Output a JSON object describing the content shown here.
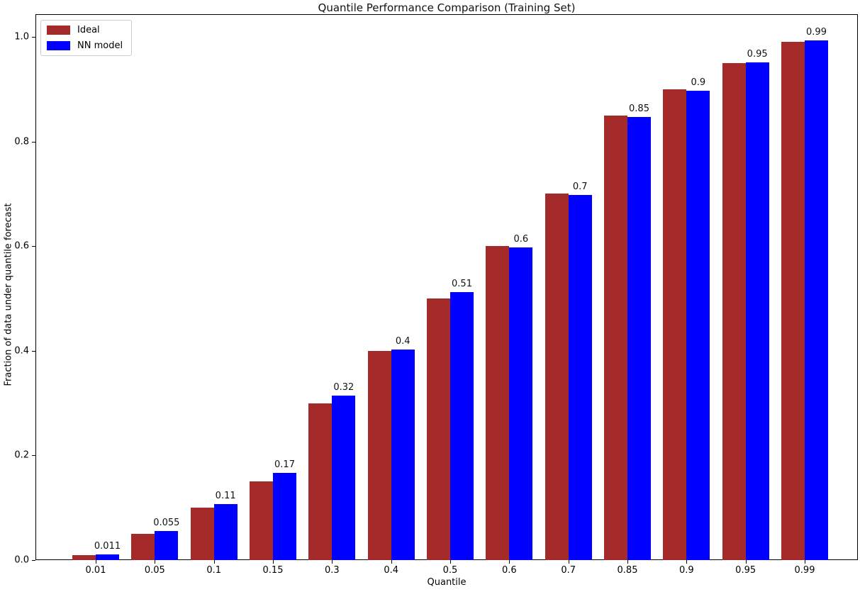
{
  "chart_data": {
    "type": "bar",
    "title": "Quantile Performance Comparison (Training Set)",
    "xlabel": "Quantile",
    "ylabel": "Fraction of data under quantile forecast",
    "categories": [
      "0.01",
      "0.05",
      "0.1",
      "0.15",
      "0.3",
      "0.4",
      "0.5",
      "0.6",
      "0.7",
      "0.85",
      "0.9",
      "0.95",
      "0.99"
    ],
    "series": [
      {
        "name": "Ideal",
        "color": "#a52a2a",
        "values": [
          0.01,
          0.05,
          0.1,
          0.15,
          0.3,
          0.4,
          0.5,
          0.6,
          0.7,
          0.85,
          0.9,
          0.95,
          0.99
        ]
      },
      {
        "name": "NN model",
        "color": "#0000ff",
        "values": [
          0.011,
          0.055,
          0.107,
          0.166,
          0.315,
          0.403,
          0.512,
          0.597,
          0.698,
          0.847,
          0.897,
          0.951,
          0.993
        ],
        "labels": [
          "0.011",
          "0.055",
          "0.11",
          "0.17",
          "0.32",
          "0.4",
          "0.51",
          "0.6",
          "0.7",
          "0.85",
          "0.9",
          "0.95",
          "0.99"
        ]
      }
    ],
    "yticks": [
      0.0,
      0.2,
      0.4,
      0.6,
      0.8,
      1.0
    ],
    "ytick_labels": [
      "0.0",
      "0.2",
      "0.4",
      "0.6",
      "0.8",
      "1.0"
    ],
    "ylim": [
      0,
      1.0434
    ],
    "grid": false,
    "legend_position": "upper left"
  }
}
